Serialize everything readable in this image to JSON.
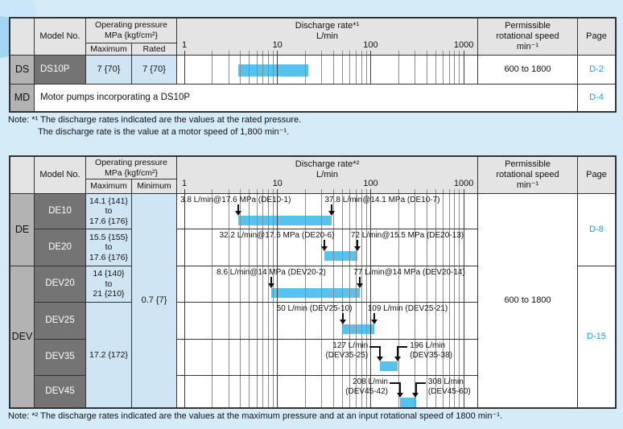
{
  "notes": {
    "n1_l1": "Note: *¹ The discharge rates indicated are the values at the rated pressure.",
    "n1_l2": "The discharge rate is the value at a motor speed of 1,800 min⁻¹.",
    "n2": "Note: *² The discharge rates indicated are the values at the maximum pressure and at an input rotational speed of 1800 min⁻¹."
  },
  "top_table": {
    "header": {
      "model": "Model No.",
      "op_l1": "Operating pressure",
      "op_l2": "MPa {kgf/cm²}",
      "maximum": "Maximum",
      "rated": "Rated",
      "speed_l1": "Permissible",
      "speed_l2": "rotational speed",
      "speed_l3": "min⁻¹",
      "page": "Page"
    },
    "row_ds": {
      "series": "DS",
      "model": "DS10P",
      "max": "7 {70}",
      "rated": "7 {70}",
      "speed": "600 to 1800",
      "page": "D-2"
    },
    "row_md": {
      "series": "MD",
      "text": "Motor pumps incorporating a DS10P",
      "page": "D-4"
    }
  },
  "bottom_table": {
    "header": {
      "model": "Model No.",
      "op_l1": "Operating pressure",
      "op_l2": "MPa {kgf/cm²}",
      "maximum": "Maximum",
      "minimum": "Minimum",
      "speed_l1": "Permissible",
      "speed_l2": "rotational speed",
      "speed_l3": "min⁻¹",
      "page": "Page"
    },
    "series": {
      "de": "DE",
      "dev": "DEV"
    },
    "models": [
      "DE10",
      "DE20",
      "DEV20",
      "DEV25",
      "DEV35",
      "DEV45"
    ],
    "pressure_max": [
      {
        "lines": [
          "14.1 {141}",
          "to",
          "17.6 {176}"
        ]
      },
      {
        "lines": [
          "15.5 {155}",
          "to",
          "17.6 {176}"
        ]
      },
      {
        "lines": [
          "14 {140}",
          "to",
          "21 {210}"
        ]
      },
      {
        "lines": [
          "17.2 {172}"
        ]
      }
    ],
    "pressure_min": "0.7 {7}",
    "speed": "600 to 1800",
    "pages": [
      "D-8",
      "D-15"
    ]
  },
  "chart_data": [
    {
      "type": "bar",
      "scale": "log",
      "title": "Discharge rate*¹",
      "unit": "L/min",
      "x_range": [
        0.836,
        1400
      ],
      "x_ticks": [
        1,
        10,
        100,
        1000
      ],
      "x_minor_per_decade": [
        2,
        3,
        4,
        5,
        6,
        7,
        8,
        9
      ],
      "bars": [
        {
          "name": "DS10P",
          "range": [
            3.8,
            21.5
          ],
          "labels": []
        }
      ]
    },
    {
      "type": "bar",
      "scale": "log",
      "title": "Discharge rate*²",
      "unit": "L/min",
      "x_range": [
        0.836,
        1400
      ],
      "x_ticks": [
        1,
        10,
        100,
        1000
      ],
      "x_minor_per_decade": [
        2,
        3,
        4,
        5,
        6,
        7,
        8,
        9
      ],
      "bars": [
        {
          "name": "DE10",
          "range": [
            3.8,
            37.8
          ],
          "labels": [
            {
              "text": "3.8 L/min@17.6 MPa (DE10-1)",
              "at": 3.8,
              "anchor": "edge-left",
              "style": "arrow"
            },
            {
              "text": "37.8 L/min@14.1 MPa (DE10-7)",
              "at": 37.8,
              "anchor": "start",
              "style": "arrow"
            }
          ]
        },
        {
          "name": "DE20",
          "range": [
            32.2,
            72
          ],
          "labels": [
            {
              "text": "32.2 L/min@17.6 MPa (DE20-6)",
              "at": 32.2,
              "anchor": "end",
              "style": "arrow"
            },
            {
              "text": "72 L/min@15.5 MPa (DE20-13)",
              "at": 72,
              "anchor": "start",
              "style": "arrow"
            }
          ]
        },
        {
          "name": "DEV20",
          "range": [
            8.6,
            77
          ],
          "labels": [
            {
              "text": "8.6 L/min@14 MPa (DEV20-2)",
              "at": 8.6,
              "anchor": "center",
              "style": "arrow"
            },
            {
              "text": "77 L/min@14 MPa (DEV20-14)",
              "at": 77,
              "anchor": "start",
              "style": "arrow"
            }
          ]
        },
        {
          "name": "DEV25",
          "range": [
            50,
            109
          ],
          "labels": [
            {
              "text": "50 L/min (DEV25-10)",
              "at": 50,
              "anchor": "end",
              "style": "arrow"
            },
            {
              "text": "109 L/min (DEV25-21)",
              "at": 109,
              "anchor": "start",
              "style": "arrow"
            }
          ]
        },
        {
          "name": "DEV35",
          "range": [
            127,
            196
          ],
          "labels": [
            {
              "lines": [
                "127 L/min",
                "(DEV35-25)"
              ],
              "at": 127,
              "style": "elbow",
              "side": "left"
            },
            {
              "lines": [
                "196 L/min",
                "(DEV35-38)"
              ],
              "at": 196,
              "style": "elbow",
              "side": "right"
            }
          ]
        },
        {
          "name": "DEV45",
          "range": [
            208,
            308
          ],
          "labels": [
            {
              "lines": [
                "208 L/min",
                "(DEV45-42)"
              ],
              "at": 208,
              "style": "elbow",
              "side": "left"
            },
            {
              "lines": [
                "308 L/min",
                "(DEV45-60)"
              ],
              "at": 308,
              "style": "elbow",
              "side": "right"
            }
          ]
        }
      ]
    }
  ],
  "colors": {
    "accent_bar": "#56c2ed",
    "page_link": "#1b9cd8",
    "header_bg": "#e4e4e4",
    "series_bg": "#b3b3b3",
    "model_bg": "#747474",
    "pressure_bg": "#cfe5f3",
    "background": "#d5ebf8"
  }
}
